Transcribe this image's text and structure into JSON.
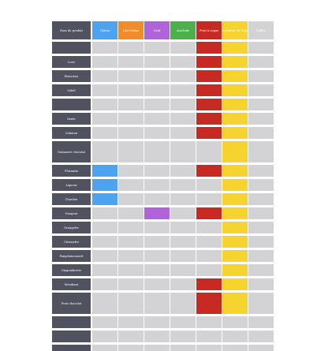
{
  "colors": {
    "gluten": "#4da3f0",
    "lait": "#f08c2a",
    "oeuf": "#b164d9",
    "arachide": "#4db04a",
    "fruit": "#c72a22",
    "lecithine": "#f6d32e",
    "sulfite": "#d3d3d5",
    "empty": "#d3d3d5",
    "name": "#50535f"
  },
  "header": {
    "name": "Nom du produit",
    "columns": [
      {
        "key": "gluten",
        "label": "Gluten"
      },
      {
        "key": "lait",
        "label": "Lait Crème"
      },
      {
        "key": "oeuf",
        "label": "Oeuf"
      },
      {
        "key": "arachide",
        "label": "Arachide"
      },
      {
        "key": "fruit",
        "label": "Fruit à coque"
      },
      {
        "key": "lecithine",
        "label": "Lecithine de Soja"
      },
      {
        "key": "sulfite",
        "label": "Sulfite"
      }
    ]
  },
  "rows": [
    {
      "name": "",
      "flags": [
        0,
        0,
        0,
        0,
        1,
        1,
        0
      ]
    },
    {
      "name": "Love",
      "flags": [
        0,
        0,
        0,
        0,
        1,
        1,
        0
      ]
    },
    {
      "name": "Pistachou",
      "flags": [
        0,
        0,
        0,
        0,
        1,
        1,
        0
      ]
    },
    {
      "name": "Soleil",
      "flags": [
        0,
        0,
        0,
        0,
        1,
        1,
        0
      ]
    },
    {
      "name": "",
      "flags": [
        0,
        0,
        0,
        0,
        1,
        1,
        0
      ]
    },
    {
      "name": "Irisée",
      "flags": [
        0,
        0,
        0,
        0,
        1,
        1,
        0
      ]
    },
    {
      "name": "Cabaron",
      "flags": [
        0,
        0,
        0,
        0,
        1,
        1,
        0
      ]
    },
    {
      "name": "Guimauve chocolat",
      "flags": [
        0,
        0,
        0,
        0,
        0,
        1,
        0
      ],
      "tall": true
    },
    {
      "name": "Florantin",
      "flags": [
        1,
        0,
        0,
        0,
        1,
        1,
        0
      ]
    },
    {
      "name": "Liqueur",
      "flags": [
        1,
        0,
        0,
        0,
        0,
        1,
        0
      ]
    },
    {
      "name": "Chardon",
      "flags": [
        1,
        0,
        0,
        0,
        0,
        1,
        0
      ]
    },
    {
      "name": "Nougeat",
      "flags": [
        0,
        0,
        1,
        0,
        1,
        1,
        0
      ]
    },
    {
      "name": "Orangette",
      "flags": [
        0,
        0,
        0,
        0,
        0,
        1,
        0
      ]
    },
    {
      "name": "Citronette",
      "flags": [
        0,
        0,
        0,
        0,
        0,
        1,
        0
      ]
    },
    {
      "name": "Pamplemoussett",
      "flags": [
        0,
        0,
        0,
        0,
        0,
        1,
        0
      ]
    },
    {
      "name": "Gingembrette",
      "flags": [
        0,
        0,
        0,
        0,
        0,
        1,
        0
      ]
    },
    {
      "name": "Mendiant",
      "flags": [
        0,
        0,
        0,
        0,
        1,
        1,
        0
      ]
    },
    {
      "name": "Fruit chocolat",
      "flags": [
        0,
        0,
        0,
        0,
        1,
        1,
        0
      ],
      "tall": true
    },
    {
      "name": "",
      "flags": [
        0,
        0,
        0,
        0,
        0,
        0,
        0
      ]
    },
    {
      "name": "",
      "flags": [
        0,
        0,
        0,
        0,
        0,
        0,
        0
      ]
    },
    {
      "name": "",
      "flags": [
        0,
        0,
        0,
        0,
        0,
        0,
        0
      ],
      "cut": true
    }
  ]
}
